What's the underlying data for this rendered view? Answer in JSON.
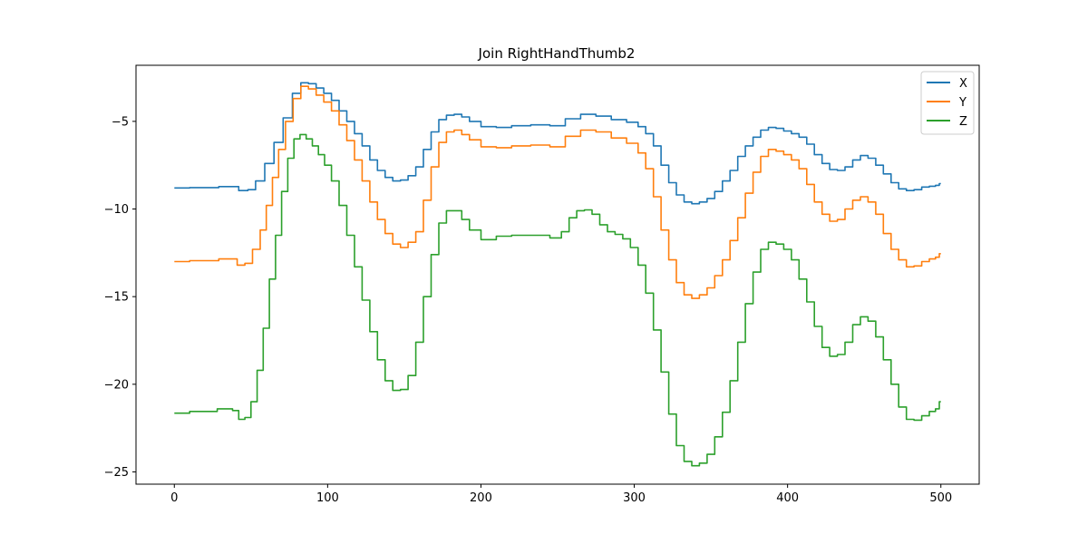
{
  "chart_data": {
    "type": "line",
    "title": "Join RightHandThumb2",
    "xlabel": "",
    "ylabel": "",
    "xlim": [
      -25,
      525
    ],
    "ylim": [
      -25.7,
      -1.8
    ],
    "xticks": [
      0,
      100,
      200,
      300,
      400,
      500
    ],
    "yticks": [
      -5,
      -10,
      -15,
      -20,
      -25
    ],
    "grid": false,
    "legend": "top-right",
    "series": [
      {
        "name": "X",
        "color": "#1f77b4",
        "points": [
          [
            0,
            -8.8
          ],
          [
            20,
            -8.78
          ],
          [
            38,
            -8.72
          ],
          [
            46,
            -8.95
          ],
          [
            50,
            -8.9
          ],
          [
            56,
            -8.4
          ],
          [
            62,
            -7.4
          ],
          [
            68,
            -6.2
          ],
          [
            74,
            -4.8
          ],
          [
            80,
            -3.4
          ],
          [
            85,
            -2.8
          ],
          [
            90,
            -2.85
          ],
          [
            95,
            -3.1
          ],
          [
            100,
            -3.4
          ],
          [
            105,
            -3.8
          ],
          [
            110,
            -4.4
          ],
          [
            115,
            -5.0
          ],
          [
            120,
            -5.7
          ],
          [
            125,
            -6.4
          ],
          [
            130,
            -7.2
          ],
          [
            135,
            -7.8
          ],
          [
            140,
            -8.2
          ],
          [
            145,
            -8.4
          ],
          [
            150,
            -8.35
          ],
          [
            155,
            -8.1
          ],
          [
            160,
            -7.6
          ],
          [
            165,
            -6.6
          ],
          [
            170,
            -5.6
          ],
          [
            175,
            -4.9
          ],
          [
            180,
            -4.65
          ],
          [
            185,
            -4.6
          ],
          [
            190,
            -4.75
          ],
          [
            195,
            -5.0
          ],
          [
            205,
            -5.3
          ],
          [
            215,
            -5.35
          ],
          [
            225,
            -5.25
          ],
          [
            240,
            -5.2
          ],
          [
            250,
            -5.25
          ],
          [
            260,
            -4.85
          ],
          [
            270,
            -4.6
          ],
          [
            280,
            -4.7
          ],
          [
            290,
            -4.9
          ],
          [
            300,
            -5.05
          ],
          [
            305,
            -5.3
          ],
          [
            310,
            -5.7
          ],
          [
            315,
            -6.4
          ],
          [
            320,
            -7.5
          ],
          [
            325,
            -8.5
          ],
          [
            330,
            -9.2
          ],
          [
            335,
            -9.6
          ],
          [
            340,
            -9.7
          ],
          [
            345,
            -9.6
          ],
          [
            350,
            -9.4
          ],
          [
            355,
            -9.0
          ],
          [
            360,
            -8.4
          ],
          [
            365,
            -7.8
          ],
          [
            370,
            -7.0
          ],
          [
            375,
            -6.4
          ],
          [
            380,
            -5.9
          ],
          [
            385,
            -5.5
          ],
          [
            390,
            -5.35
          ],
          [
            395,
            -5.4
          ],
          [
            400,
            -5.55
          ],
          [
            405,
            -5.7
          ],
          [
            410,
            -5.9
          ],
          [
            415,
            -6.3
          ],
          [
            420,
            -6.9
          ],
          [
            425,
            -7.4
          ],
          [
            430,
            -7.75
          ],
          [
            435,
            -7.8
          ],
          [
            440,
            -7.6
          ],
          [
            445,
            -7.2
          ],
          [
            450,
            -6.95
          ],
          [
            455,
            -7.1
          ],
          [
            460,
            -7.5
          ],
          [
            465,
            -8.0
          ],
          [
            470,
            -8.5
          ],
          [
            475,
            -8.85
          ],
          [
            480,
            -8.95
          ],
          [
            485,
            -8.9
          ],
          [
            490,
            -8.75
          ],
          [
            495,
            -8.7
          ],
          [
            498,
            -8.65
          ],
          [
            500,
            -8.55
          ]
        ]
      },
      {
        "name": "Y",
        "color": "#ff7f0e",
        "points": [
          [
            0,
            -13.0
          ],
          [
            20,
            -12.95
          ],
          [
            38,
            -12.85
          ],
          [
            44,
            -13.2
          ],
          [
            48,
            -13.1
          ],
          [
            54,
            -12.3
          ],
          [
            58,
            -11.2
          ],
          [
            62,
            -9.8
          ],
          [
            66,
            -8.2
          ],
          [
            70,
            -6.6
          ],
          [
            75,
            -5.0
          ],
          [
            80,
            -3.7
          ],
          [
            85,
            -3.0
          ],
          [
            90,
            -3.15
          ],
          [
            95,
            -3.5
          ],
          [
            100,
            -3.9
          ],
          [
            105,
            -4.4
          ],
          [
            110,
            -5.2
          ],
          [
            115,
            -6.1
          ],
          [
            120,
            -7.2
          ],
          [
            125,
            -8.4
          ],
          [
            130,
            -9.6
          ],
          [
            135,
            -10.6
          ],
          [
            140,
            -11.4
          ],
          [
            145,
            -12.0
          ],
          [
            150,
            -12.2
          ],
          [
            155,
            -11.9
          ],
          [
            160,
            -11.3
          ],
          [
            165,
            -9.5
          ],
          [
            170,
            -7.6
          ],
          [
            175,
            -6.2
          ],
          [
            180,
            -5.6
          ],
          [
            185,
            -5.5
          ],
          [
            190,
            -5.75
          ],
          [
            195,
            -6.05
          ],
          [
            205,
            -6.45
          ],
          [
            215,
            -6.5
          ],
          [
            225,
            -6.4
          ],
          [
            240,
            -6.35
          ],
          [
            250,
            -6.45
          ],
          [
            260,
            -5.85
          ],
          [
            270,
            -5.5
          ],
          [
            280,
            -5.6
          ],
          [
            290,
            -5.95
          ],
          [
            300,
            -6.25
          ],
          [
            305,
            -6.8
          ],
          [
            310,
            -7.7
          ],
          [
            315,
            -9.3
          ],
          [
            320,
            -11.2
          ],
          [
            325,
            -12.9
          ],
          [
            330,
            -14.2
          ],
          [
            335,
            -14.9
          ],
          [
            340,
            -15.1
          ],
          [
            345,
            -14.9
          ],
          [
            350,
            -14.5
          ],
          [
            355,
            -13.8
          ],
          [
            360,
            -12.9
          ],
          [
            365,
            -11.8
          ],
          [
            370,
            -10.5
          ],
          [
            375,
            -9.1
          ],
          [
            380,
            -7.9
          ],
          [
            385,
            -7.0
          ],
          [
            390,
            -6.6
          ],
          [
            395,
            -6.7
          ],
          [
            400,
            -6.9
          ],
          [
            405,
            -7.2
          ],
          [
            410,
            -7.7
          ],
          [
            415,
            -8.6
          ],
          [
            420,
            -9.6
          ],
          [
            425,
            -10.3
          ],
          [
            430,
            -10.7
          ],
          [
            435,
            -10.6
          ],
          [
            440,
            -10.0
          ],
          [
            445,
            -9.5
          ],
          [
            450,
            -9.3
          ],
          [
            455,
            -9.6
          ],
          [
            460,
            -10.3
          ],
          [
            465,
            -11.4
          ],
          [
            470,
            -12.3
          ],
          [
            475,
            -12.9
          ],
          [
            480,
            -13.3
          ],
          [
            485,
            -13.25
          ],
          [
            490,
            -13.0
          ],
          [
            495,
            -12.85
          ],
          [
            498,
            -12.75
          ],
          [
            500,
            -12.55
          ]
        ]
      },
      {
        "name": "Z",
        "color": "#2ca02c",
        "points": [
          [
            0,
            -21.65
          ],
          [
            20,
            -21.55
          ],
          [
            36,
            -21.4
          ],
          [
            40,
            -21.5
          ],
          [
            44,
            -22.0
          ],
          [
            48,
            -21.9
          ],
          [
            52,
            -21.0
          ],
          [
            56,
            -19.2
          ],
          [
            60,
            -16.8
          ],
          [
            64,
            -14.0
          ],
          [
            68,
            -11.5
          ],
          [
            72,
            -9.0
          ],
          [
            76,
            -7.1
          ],
          [
            80,
            -6.0
          ],
          [
            84,
            -5.75
          ],
          [
            88,
            -6.0
          ],
          [
            92,
            -6.4
          ],
          [
            96,
            -6.9
          ],
          [
            100,
            -7.5
          ],
          [
            105,
            -8.4
          ],
          [
            110,
            -9.8
          ],
          [
            115,
            -11.5
          ],
          [
            120,
            -13.3
          ],
          [
            125,
            -15.2
          ],
          [
            130,
            -17.0
          ],
          [
            135,
            -18.6
          ],
          [
            140,
            -19.8
          ],
          [
            145,
            -20.35
          ],
          [
            150,
            -20.3
          ],
          [
            155,
            -19.5
          ],
          [
            160,
            -17.6
          ],
          [
            165,
            -15.0
          ],
          [
            170,
            -12.6
          ],
          [
            175,
            -10.8
          ],
          [
            180,
            -10.1
          ],
          [
            185,
            -10.1
          ],
          [
            190,
            -10.6
          ],
          [
            195,
            -11.2
          ],
          [
            205,
            -11.75
          ],
          [
            215,
            -11.55
          ],
          [
            225,
            -11.5
          ],
          [
            240,
            -11.5
          ],
          [
            250,
            -11.65
          ],
          [
            255,
            -11.3
          ],
          [
            260,
            -10.5
          ],
          [
            265,
            -10.1
          ],
          [
            270,
            -10.05
          ],
          [
            275,
            -10.3
          ],
          [
            280,
            -10.9
          ],
          [
            285,
            -11.3
          ],
          [
            290,
            -11.45
          ],
          [
            295,
            -11.7
          ],
          [
            300,
            -12.2
          ],
          [
            305,
            -13.2
          ],
          [
            310,
            -14.8
          ],
          [
            315,
            -16.9
          ],
          [
            320,
            -19.3
          ],
          [
            325,
            -21.7
          ],
          [
            330,
            -23.5
          ],
          [
            335,
            -24.4
          ],
          [
            340,
            -24.65
          ],
          [
            345,
            -24.5
          ],
          [
            350,
            -24.0
          ],
          [
            355,
            -23.0
          ],
          [
            360,
            -21.6
          ],
          [
            365,
            -19.8
          ],
          [
            370,
            -17.6
          ],
          [
            375,
            -15.4
          ],
          [
            380,
            -13.6
          ],
          [
            385,
            -12.3
          ],
          [
            390,
            -11.9
          ],
          [
            395,
            -12.0
          ],
          [
            400,
            -12.3
          ],
          [
            405,
            -12.9
          ],
          [
            410,
            -14.0
          ],
          [
            415,
            -15.3
          ],
          [
            420,
            -16.7
          ],
          [
            425,
            -17.9
          ],
          [
            430,
            -18.4
          ],
          [
            435,
            -18.3
          ],
          [
            440,
            -17.6
          ],
          [
            445,
            -16.6
          ],
          [
            450,
            -16.15
          ],
          [
            455,
            -16.4
          ],
          [
            460,
            -17.3
          ],
          [
            465,
            -18.6
          ],
          [
            470,
            -20.0
          ],
          [
            475,
            -21.3
          ],
          [
            480,
            -22.0
          ],
          [
            485,
            -22.05
          ],
          [
            490,
            -21.8
          ],
          [
            495,
            -21.55
          ],
          [
            498,
            -21.4
          ],
          [
            500,
            -21.0
          ]
        ]
      }
    ]
  }
}
